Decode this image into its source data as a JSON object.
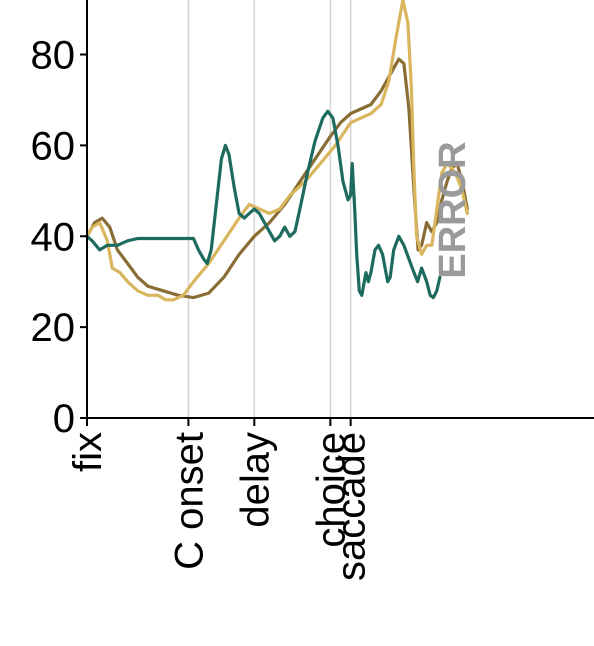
{
  "chart_data": {
    "type": "line",
    "title": "",
    "xlabel": "",
    "ylabel": "",
    "ylim": [
      0,
      92
    ],
    "yticks": [
      0,
      20,
      40,
      60,
      80
    ],
    "xlim": [
      0,
      100
    ],
    "grid": "vertical lines at event markers",
    "events": [
      {
        "label": "fix",
        "x": 0
      },
      {
        "label": "C onset",
        "x": 20
      },
      {
        "label": "delay",
        "x": 33
      },
      {
        "label": "choice",
        "x": 48
      },
      {
        "label": "saccade",
        "x": 52
      }
    ],
    "annotation": "ERROR",
    "series": [
      {
        "color": "#8a6d35",
        "points": [
          [
            0,
            40
          ],
          [
            1.5,
            43
          ],
          [
            3,
            44
          ],
          [
            4.5,
            42
          ],
          [
            6,
            37
          ],
          [
            8,
            34
          ],
          [
            10,
            31
          ],
          [
            12,
            29
          ],
          [
            15,
            28
          ],
          [
            18,
            27
          ],
          [
            21,
            26.5
          ],
          [
            24,
            27.5
          ],
          [
            27,
            31
          ],
          [
            30,
            36
          ],
          [
            33,
            40
          ],
          [
            36,
            43
          ],
          [
            39,
            47
          ],
          [
            42,
            52
          ],
          [
            45,
            57
          ],
          [
            48,
            62
          ],
          [
            50,
            65
          ],
          [
            52,
            67
          ],
          [
            54,
            68
          ],
          [
            56,
            69
          ],
          [
            58,
            72
          ],
          [
            60,
            76
          ],
          [
            61.5,
            79
          ],
          [
            62.5,
            78
          ],
          [
            63.5,
            68
          ],
          [
            64.5,
            50
          ],
          [
            65.3,
            37
          ],
          [
            66,
            38
          ],
          [
            67,
            43
          ],
          [
            68,
            41
          ],
          [
            69,
            43
          ],
          [
            70,
            48
          ],
          [
            71,
            52
          ],
          [
            72,
            55
          ],
          [
            73,
            56
          ],
          [
            74,
            52
          ],
          [
            75,
            46
          ]
        ]
      },
      {
        "color": "#d9b65e",
        "points": [
          [
            0,
            40
          ],
          [
            1,
            42
          ],
          [
            2.5,
            43
          ],
          [
            4,
            39
          ],
          [
            5,
            33
          ],
          [
            6.5,
            32
          ],
          [
            8,
            30
          ],
          [
            10,
            28
          ],
          [
            12,
            27
          ],
          [
            14,
            27
          ],
          [
            15.5,
            26
          ],
          [
            17,
            26
          ],
          [
            19,
            27
          ],
          [
            21,
            30
          ],
          [
            24,
            34
          ],
          [
            27,
            39
          ],
          [
            30,
            44
          ],
          [
            32,
            47
          ],
          [
            34,
            46
          ],
          [
            36,
            45
          ],
          [
            38,
            46
          ],
          [
            40,
            49
          ],
          [
            43,
            52
          ],
          [
            46,
            56
          ],
          [
            49,
            60
          ],
          [
            52,
            65
          ],
          [
            54,
            66
          ],
          [
            56,
            67
          ],
          [
            58,
            69
          ],
          [
            59.5,
            74
          ],
          [
            61,
            84
          ],
          [
            62.3,
            92
          ],
          [
            63.3,
            87
          ],
          [
            64,
            72
          ],
          [
            64.5,
            54
          ],
          [
            65,
            40
          ],
          [
            66,
            36
          ],
          [
            67,
            38
          ],
          [
            68,
            38
          ],
          [
            69,
            46
          ],
          [
            70,
            54
          ],
          [
            71,
            56
          ],
          [
            72,
            55
          ],
          [
            73,
            53
          ],
          [
            74,
            50
          ],
          [
            75,
            45
          ]
        ]
      },
      {
        "color": "#1d6b5f",
        "points": [
          [
            0,
            40
          ],
          [
            1,
            39
          ],
          [
            2.5,
            37
          ],
          [
            4,
            38
          ],
          [
            6,
            38
          ],
          [
            8,
            39
          ],
          [
            10,
            39.5
          ],
          [
            13,
            39.5
          ],
          [
            16,
            39.5
          ],
          [
            19,
            39.5
          ],
          [
            21,
            39.5
          ],
          [
            22,
            37
          ],
          [
            23,
            35
          ],
          [
            23.7,
            34
          ],
          [
            24.5,
            37
          ],
          [
            25.5,
            47
          ],
          [
            26.5,
            57
          ],
          [
            27.3,
            60
          ],
          [
            28,
            58
          ],
          [
            29,
            51
          ],
          [
            30,
            45
          ],
          [
            31,
            44
          ],
          [
            32,
            45
          ],
          [
            33,
            46
          ],
          [
            34,
            45
          ],
          [
            35,
            43
          ],
          [
            36,
            41
          ],
          [
            37,
            39
          ],
          [
            38,
            40
          ],
          [
            39,
            42
          ],
          [
            40,
            40
          ],
          [
            41,
            41
          ],
          [
            42,
            46
          ],
          [
            43.5,
            54
          ],
          [
            45,
            61
          ],
          [
            46.5,
            66
          ],
          [
            47.5,
            67.5
          ],
          [
            48.5,
            66
          ],
          [
            49.5,
            60
          ],
          [
            50.5,
            52
          ],
          [
            51.5,
            48
          ],
          [
            52,
            49
          ],
          [
            52.3,
            56
          ],
          [
            52.8,
            46
          ],
          [
            53.2,
            36
          ],
          [
            53.7,
            28
          ],
          [
            54.2,
            27
          ],
          [
            55,
            32
          ],
          [
            55.5,
            30
          ],
          [
            56,
            32
          ],
          [
            56.8,
            37
          ],
          [
            57.5,
            38
          ],
          [
            58.3,
            36
          ],
          [
            58.8,
            33
          ],
          [
            59.3,
            30
          ],
          [
            59.8,
            31
          ],
          [
            60.5,
            37
          ],
          [
            61.5,
            40
          ],
          [
            62.5,
            38
          ],
          [
            63.5,
            35
          ],
          [
            64.5,
            32
          ],
          [
            65.2,
            30
          ],
          [
            66,
            33
          ],
          [
            67,
            30
          ],
          [
            67.7,
            27
          ],
          [
            68.3,
            26.5
          ],
          [
            69,
            28
          ],
          [
            69.6,
            31
          ]
        ]
      }
    ]
  }
}
